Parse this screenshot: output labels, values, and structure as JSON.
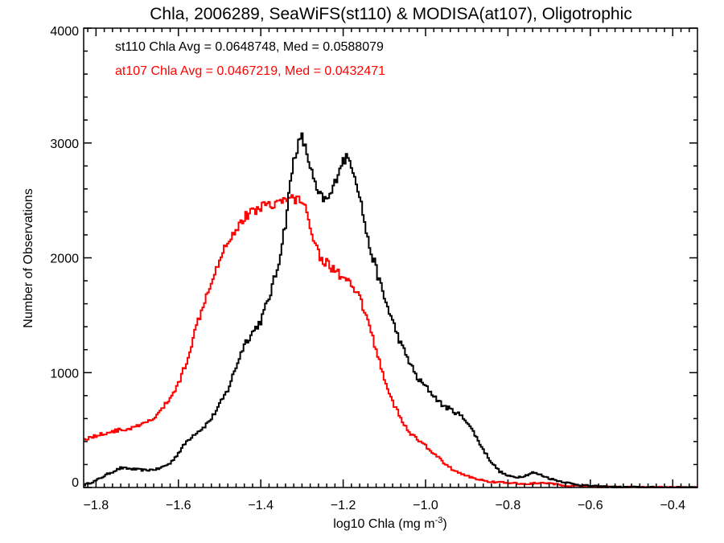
{
  "chart_data": {
    "type": "line",
    "title": "Chla, 2006289, SeaWiFS(st110) & MODISA(at107), Oligotrophic",
    "xlabel": "log10 Chla (mg m",
    "xlabel_sup": "-3",
    "xlabel_end": ")",
    "ylabel": "Number of Observations",
    "xlim": [
      -1.83,
      -0.34
    ],
    "ylim": [
      0,
      4000
    ],
    "grid": false,
    "x_ticks": [
      -1.8,
      -1.6,
      -1.4,
      -1.2,
      -1.0,
      -0.8,
      -0.6,
      -0.4
    ],
    "x_tick_labels": [
      "−1.8",
      "−1.6",
      "−1.4",
      "−1.2",
      "−1.0",
      "−0.8",
      "−0.6",
      "−0.4"
    ],
    "y_ticks": [
      0,
      1000,
      2000,
      3000,
      4000
    ],
    "y_tick_labels": [
      "0",
      "1000",
      "2000",
      "3000",
      "4000"
    ],
    "annotations": [
      {
        "text": "st110 Chla Avg = 0.0648748, Med = 0.0588079",
        "color": "#000000"
      },
      {
        "text": "at107 Chla Avg = 0.0467219, Med = 0.0432471",
        "color": "#ff0000"
      }
    ],
    "series": [
      {
        "color": "#000000",
        "x": [
          -1.83,
          -1.8,
          -1.77,
          -1.74,
          -1.71,
          -1.68,
          -1.65,
          -1.62,
          -1.6,
          -1.58,
          -1.56,
          -1.54,
          -1.52,
          -1.5,
          -1.48,
          -1.46,
          -1.44,
          -1.42,
          -1.4,
          -1.38,
          -1.36,
          -1.35,
          -1.34,
          -1.33,
          -1.32,
          -1.31,
          -1.3,
          -1.29,
          -1.28,
          -1.27,
          -1.26,
          -1.25,
          -1.24,
          -1.23,
          -1.22,
          -1.21,
          -1.2,
          -1.19,
          -1.18,
          -1.17,
          -1.16,
          -1.15,
          -1.14,
          -1.12,
          -1.1,
          -1.08,
          -1.06,
          -1.04,
          -1.02,
          -1.0,
          -0.98,
          -0.96,
          -0.94,
          -0.92,
          -0.9,
          -0.88,
          -0.86,
          -0.84,
          -0.82,
          -0.8,
          -0.78,
          -0.76,
          -0.74,
          -0.72,
          -0.7,
          -0.68,
          -0.66,
          -0.64,
          -0.62,
          -0.6,
          -0.58,
          -0.55,
          -0.5,
          -0.45,
          -0.4,
          -0.34
        ],
        "y": [
          20,
          60,
          120,
          170,
          160,
          150,
          160,
          210,
          300,
          400,
          470,
          520,
          600,
          720,
          850,
          1050,
          1250,
          1350,
          1450,
          1650,
          1900,
          2100,
          2300,
          2600,
          2850,
          2980,
          3050,
          2930,
          2800,
          2650,
          2550,
          2520,
          2500,
          2550,
          2650,
          2780,
          2850,
          2870,
          2820,
          2700,
          2550,
          2350,
          2150,
          1900,
          1650,
          1450,
          1250,
          1100,
          950,
          880,
          800,
          720,
          680,
          640,
          580,
          460,
          330,
          220,
          140,
          100,
          90,
          100,
          130,
          110,
          80,
          60,
          45,
          30,
          20,
          15,
          10,
          5,
          3,
          2,
          1,
          0
        ]
      },
      {
        "color": "#ff0000",
        "x": [
          -1.83,
          -1.8,
          -1.78,
          -1.76,
          -1.74,
          -1.72,
          -1.7,
          -1.68,
          -1.66,
          -1.64,
          -1.62,
          -1.6,
          -1.58,
          -1.56,
          -1.54,
          -1.52,
          -1.5,
          -1.48,
          -1.46,
          -1.44,
          -1.42,
          -1.4,
          -1.38,
          -1.36,
          -1.34,
          -1.32,
          -1.3,
          -1.29,
          -1.28,
          -1.27,
          -1.26,
          -1.25,
          -1.24,
          -1.22,
          -1.2,
          -1.18,
          -1.16,
          -1.14,
          -1.12,
          -1.1,
          -1.08,
          -1.06,
          -1.04,
          -1.02,
          -1.0,
          -0.98,
          -0.96,
          -0.94,
          -0.92,
          -0.9,
          -0.88,
          -0.86,
          -0.84,
          -0.82,
          -0.8,
          -0.78,
          -0.76,
          -0.74,
          -0.72,
          -0.7,
          -0.68,
          -0.66,
          -0.64,
          -0.6,
          -0.55,
          -0.5,
          -0.45,
          -0.4,
          -0.34
        ],
        "y": [
          420,
          450,
          470,
          490,
          500,
          510,
          530,
          560,
          600,
          680,
          780,
          900,
          1100,
          1350,
          1600,
          1800,
          2000,
          2150,
          2250,
          2350,
          2400,
          2450,
          2470,
          2480,
          2500,
          2520,
          2500,
          2400,
          2300,
          2150,
          2050,
          1980,
          1950,
          1900,
          1820,
          1750,
          1650,
          1450,
          1200,
          950,
          750,
          600,
          480,
          420,
          360,
          300,
          230,
          170,
          130,
          100,
          80,
          60,
          50,
          45,
          40,
          35,
          30,
          35,
          40,
          35,
          25,
          18,
          12,
          8,
          5,
          3,
          2,
          1,
          0
        ]
      }
    ]
  }
}
